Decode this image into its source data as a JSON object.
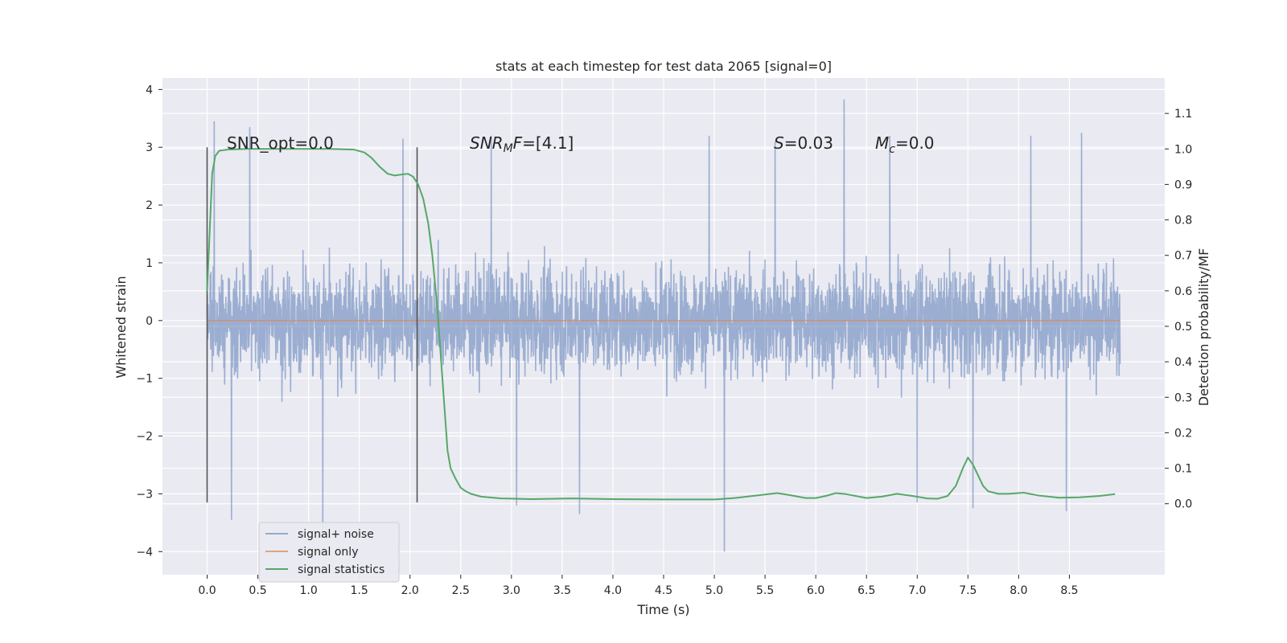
{
  "chart_data": {
    "type": "line",
    "title": "stats at each timestep for test data 2065 [signal=0]",
    "xlabel": "Time (s)",
    "ylabel": "Whitened strain",
    "ylabel_right": "Detection probability/MF",
    "xlim": [
      -0.44,
      9.44
    ],
    "ylim": [
      -4.4,
      4.2
    ],
    "ylim_right": [
      -0.2,
      1.2
    ],
    "x_ticks": [
      "0.0",
      "0.5",
      "1.0",
      "1.5",
      "2.0",
      "2.5",
      "3.0",
      "3.5",
      "4.0",
      "4.5",
      "5.0",
      "5.5",
      "6.0",
      "6.5",
      "7.0",
      "7.5",
      "8.0",
      "8.5"
    ],
    "y_ticks": [
      "4",
      "3",
      "2",
      "1",
      "0",
      "−1",
      "−2",
      "−3",
      "−4"
    ],
    "y_ticks_right": [
      "1.1",
      "1.0",
      "0.9",
      "0.8",
      "0.7",
      "0.6",
      "0.5",
      "0.4",
      "0.3",
      "0.2",
      "0.1",
      "0.0"
    ],
    "grid": true,
    "legend_position": "lower-left",
    "annotations": {
      "snr_opt": "SNR_opt=0.0",
      "snr_mf_sym": "SNR",
      "snr_mf_sub": "M",
      "snr_mf_sym2": "F",
      "snr_mf_val": "=[4.1]",
      "s_sym": "S",
      "s_val": "=0.03",
      "mc_sym": "M",
      "mc_sub": "c",
      "mc_val": "=0.0"
    },
    "vlines_x": [
      0.0,
      2.07
    ],
    "series": [
      {
        "name": "signal+ noise",
        "color": "#4c72b0",
        "kind": "noise",
        "x_range": [
          0.0,
          9.0
        ],
        "typical_range": [
          -1.8,
          1.8
        ],
        "extremes": [
          {
            "x": 0.07,
            "y": 3.45
          },
          {
            "x": 0.42,
            "y": 3.35
          },
          {
            "x": 0.24,
            "y": -3.45
          },
          {
            "x": 1.14,
            "y": -3.65
          },
          {
            "x": 1.93,
            "y": 3.15
          },
          {
            "x": 2.8,
            "y": 3.2
          },
          {
            "x": 3.67,
            "y": -3.35
          },
          {
            "x": 4.95,
            "y": 3.2
          },
          {
            "x": 5.1,
            "y": -4.0
          },
          {
            "x": 6.28,
            "y": 3.83
          },
          {
            "x": 6.73,
            "y": 3.2
          },
          {
            "x": 8.12,
            "y": 3.2
          },
          {
            "x": 8.62,
            "y": 3.25
          },
          {
            "x": 8.47,
            "y": -3.3
          },
          {
            "x": 7.0,
            "y": -3.15
          },
          {
            "x": 3.05,
            "y": -3.2
          },
          {
            "x": 5.6,
            "y": 3.1
          },
          {
            "x": 7.55,
            "y": -3.25
          }
        ]
      },
      {
        "name": "signal only",
        "color": "#dd8452",
        "x": [
          0.0,
          9.0
        ],
        "y": [
          0.0,
          0.0
        ]
      },
      {
        "name": "signal statistics",
        "color": "#55a868",
        "axis": "right",
        "x": [
          0.0,
          0.05,
          0.08,
          0.12,
          0.2,
          0.4,
          0.8,
          1.2,
          1.45,
          1.55,
          1.62,
          1.7,
          1.78,
          1.85,
          1.92,
          1.98,
          2.03,
          2.08,
          2.13,
          2.18,
          2.22,
          2.27,
          2.32,
          2.37,
          2.4,
          2.45,
          2.5,
          2.55,
          2.6,
          2.7,
          2.9,
          3.2,
          3.6,
          4.0,
          4.5,
          5.0,
          5.2,
          5.5,
          5.62,
          5.75,
          5.9,
          6.0,
          6.1,
          6.2,
          6.3,
          6.5,
          6.65,
          6.8,
          6.95,
          7.1,
          7.2,
          7.3,
          7.38,
          7.45,
          7.5,
          7.55,
          7.6,
          7.65,
          7.7,
          7.8,
          7.9,
          8.05,
          8.2,
          8.4,
          8.6,
          8.8,
          8.95
        ],
        "y": [
          0.6,
          0.93,
          0.98,
          0.995,
          0.998,
          1.0,
          1.0,
          1.0,
          0.998,
          0.99,
          0.975,
          0.95,
          0.93,
          0.925,
          0.928,
          0.93,
          0.922,
          0.9,
          0.86,
          0.79,
          0.7,
          0.55,
          0.35,
          0.15,
          0.1,
          0.07,
          0.045,
          0.035,
          0.028,
          0.02,
          0.015,
          0.013,
          0.015,
          0.013,
          0.012,
          0.012,
          0.016,
          0.026,
          0.03,
          0.024,
          0.016,
          0.016,
          0.022,
          0.03,
          0.027,
          0.016,
          0.02,
          0.028,
          0.022,
          0.015,
          0.014,
          0.022,
          0.05,
          0.1,
          0.13,
          0.11,
          0.08,
          0.05,
          0.035,
          0.028,
          0.028,
          0.031,
          0.023,
          0.017,
          0.018,
          0.022,
          0.027
        ]
      }
    ]
  }
}
